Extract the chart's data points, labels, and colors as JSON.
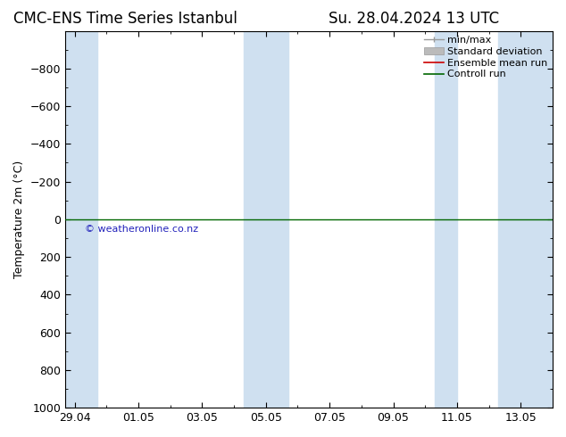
{
  "title_left": "CMC-ENS Time Series Istanbul",
  "title_right": "Su. 28.04.2024 13 UTC",
  "ylabel": "Temperature 2m (°C)",
  "ylim_top": -1000,
  "ylim_bottom": 1000,
  "yticks": [
    -800,
    -600,
    -400,
    -200,
    0,
    200,
    400,
    600,
    800,
    1000
  ],
  "xtick_labels": [
    "29.04",
    "01.05",
    "03.05",
    "05.05",
    "07.05",
    "09.05",
    "11.05",
    "13.05"
  ],
  "xtick_positions": [
    0,
    2,
    4,
    6,
    8,
    10,
    12,
    14
  ],
  "xlim": [
    -0.3,
    15.0
  ],
  "bg_color": "#ffffff",
  "plot_bg_color": "#ffffff",
  "stripe_color": "#cfe0f0",
  "stripe_positions": [
    [
      -0.3,
      0.7
    ],
    [
      5.3,
      6.0
    ],
    [
      6.0,
      6.7
    ],
    [
      11.3,
      12.0
    ],
    [
      13.3,
      15.0
    ]
  ],
  "green_line_y": 0,
  "green_line_color": "#006600",
  "watermark": "© weatheronline.co.nz",
  "watermark_color": "#2222bb",
  "legend_labels": [
    "min/max",
    "Standard deviation",
    "Ensemble mean run",
    "Controll run"
  ],
  "legend_line_colors": [
    "#999999",
    "#bbbbbb",
    "#cc0000",
    "#006600"
  ],
  "title_fontsize": 12,
  "axis_label_fontsize": 9,
  "tick_fontsize": 9,
  "legend_fontsize": 8
}
